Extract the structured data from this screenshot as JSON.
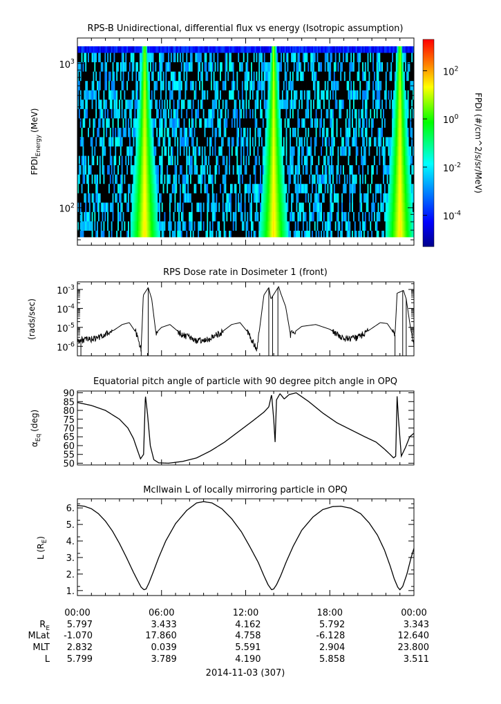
{
  "chart_data": [
    {
      "type": "heatmap",
      "title": "RPS-B  Unidirectional, differential flux vs energy (Isotropic assumption)",
      "ylabel_main": "FPDI",
      "ylabel_sub": "Energy",
      "ylabel_unit": "(MeV)",
      "yscale": "log",
      "ylim": [
        55,
        1500
      ],
      "yticks": [
        {
          "v": 100,
          "base": "10",
          "exp": "2"
        },
        {
          "v": 1000,
          "base": "10",
          "exp": "3"
        }
      ],
      "x_hours": [
        0,
        24
      ],
      "energy_bin_count": 21,
      "time_bin_count": 260,
      "peak_hours": [
        4.8,
        14.0,
        23.0
      ],
      "colorbar": {
        "label": "FPDI (#/cm^2/s/sr/MeV)",
        "scale": "log",
        "range_log10": [
          -5.3,
          3.3
        ],
        "ticks": [
          {
            "base": "10",
            "exp": "2",
            "v": 2
          },
          {
            "base": "10",
            "exp": "0",
            "v": 0
          },
          {
            "base": "10",
            "exp": "-2",
            "v": -2
          },
          {
            "base": "10",
            "exp": "-4",
            "v": -4
          }
        ],
        "colors": [
          "#00008b",
          "#0000ff",
          "#00ffff",
          "#00ff00",
          "#ffff00",
          "#ff8000",
          "#ff0000"
        ]
      }
    },
    {
      "type": "line",
      "title": "RPS  Dose rate in Dosimeter 1 (front)",
      "ylabel": "(rads/sec)",
      "yscale": "log",
      "ylim_log10": [
        -6.5,
        -2.6
      ],
      "yticks": [
        {
          "v": -6,
          "base": "10",
          "exp": "-6"
        },
        {
          "v": -5,
          "base": "10",
          "exp": "-5"
        },
        {
          "v": -4,
          "base": "10",
          "exp": "-4"
        },
        {
          "v": -3,
          "base": "10",
          "exp": "-3"
        }
      ],
      "x_hours": [
        0,
        1.3,
        2.6,
        3.2,
        3.7,
        4.2,
        4.55,
        4.7,
        5.05,
        5.3,
        5.6,
        6.0,
        6.6,
        7.4,
        8.4,
        9.3,
        10.2,
        11.0,
        11.6,
        12.2,
        12.8,
        13.3,
        13.65,
        13.8,
        14.35,
        14.5,
        14.85,
        15.2,
        16.0,
        17.0,
        18.0,
        19.0,
        20.0,
        21.0,
        21.6,
        22.1,
        22.65,
        22.8,
        23.25,
        23.45,
        23.75,
        24.0
      ],
      "values_log10": [
        -5.7,
        -5.6,
        -5.15,
        -4.85,
        -4.75,
        -5.3,
        -6.2,
        -3.3,
        -2.9,
        -3.5,
        -5.3,
        -5.0,
        -4.85,
        -5.35,
        -5.7,
        -5.65,
        -5.3,
        -4.85,
        -4.75,
        -5.3,
        -6.2,
        -3.3,
        -2.9,
        -3.5,
        -2.85,
        -3.2,
        -3.9,
        -5.4,
        -4.95,
        -4.85,
        -5.1,
        -5.6,
        -5.55,
        -5.05,
        -4.75,
        -4.8,
        -5.4,
        -3.2,
        -3.05,
        -3.5,
        -5.0,
        -5.9
      ],
      "dropout_hours": [
        4.55,
        5.05,
        13.65,
        13.92,
        14.3,
        22.65,
        23.2,
        23.45,
        0.25
      ]
    },
    {
      "type": "line",
      "title": "Equatorial pitch angle of particle with 90 degree pitch angle in OPQ",
      "ylabel_main": "α",
      "ylabel_sub": "Eq",
      "ylabel_unit": "(deg)",
      "ylim": [
        49,
        91
      ],
      "yticks": [
        50,
        55,
        60,
        65,
        70,
        75,
        80,
        85,
        90
      ],
      "x_hours": [
        0,
        1.0,
        2.0,
        3.0,
        3.6,
        4.0,
        4.3,
        4.5,
        4.72,
        4.85,
        5.0,
        5.2,
        5.45,
        5.8,
        6.5,
        7.5,
        8.5,
        9.5,
        10.5,
        11.5,
        12.5,
        13.3,
        13.65,
        13.85,
        14.0,
        14.1,
        14.2,
        14.45,
        14.75,
        15.1,
        15.6,
        16.5,
        17.5,
        18.5,
        19.5,
        20.5,
        21.3,
        21.9,
        22.3,
        22.55,
        22.7,
        22.8,
        22.9,
        23.1,
        23.4,
        23.7,
        24.0
      ],
      "values": [
        84.5,
        82.8,
        80.0,
        75.0,
        70.0,
        64.0,
        57.0,
        52.5,
        55.0,
        88.5,
        78.0,
        60.0,
        52.0,
        50.2,
        50.0,
        51.0,
        53.0,
        57.0,
        62.0,
        68.0,
        74.0,
        79.0,
        82.0,
        89.0,
        75.0,
        62.0,
        86.0,
        89.5,
        86.5,
        89.0,
        90.0,
        85.0,
        78.5,
        73.0,
        69.0,
        65.0,
        62.0,
        58.0,
        55.0,
        53.0,
        54.0,
        88.0,
        75.0,
        54.0,
        59.0,
        65.0,
        67.0
      ]
    },
    {
      "type": "line",
      "title": "McIlwain L of locally mirroring particle in OPQ",
      "ylabel_main": "L (R",
      "ylabel_sub": "E",
      "ylabel_end": ")",
      "ylim": [
        0.7,
        6.55
      ],
      "yticks": [
        1,
        2,
        3,
        4,
        5,
        6
      ],
      "x_hours": [
        0,
        0.5,
        1.0,
        1.5,
        2.0,
        2.5,
        3.0,
        3.5,
        4.0,
        4.3,
        4.55,
        4.75,
        4.9,
        5.1,
        5.4,
        5.8,
        6.3,
        7.0,
        7.8,
        8.5,
        9.0,
        9.6,
        10.3,
        11.0,
        11.7,
        12.3,
        12.9,
        13.3,
        13.6,
        13.85,
        14.0,
        14.2,
        14.5,
        14.9,
        15.4,
        16.0,
        16.8,
        17.5,
        18.2,
        18.8,
        19.5,
        20.2,
        20.8,
        21.4,
        21.9,
        22.3,
        22.6,
        22.85,
        23.0,
        23.2,
        23.5,
        23.8,
        24.0
      ],
      "values": [
        6.15,
        6.1,
        5.95,
        5.65,
        5.2,
        4.6,
        3.85,
        3.0,
        2.1,
        1.6,
        1.2,
        1.05,
        1.1,
        1.45,
        2.1,
        3.0,
        4.0,
        5.05,
        5.85,
        6.3,
        6.38,
        6.3,
        5.95,
        5.35,
        4.55,
        3.65,
        2.7,
        1.9,
        1.35,
        1.05,
        1.1,
        1.35,
        1.9,
        2.75,
        3.7,
        4.65,
        5.45,
        5.9,
        6.08,
        6.1,
        5.98,
        5.65,
        5.1,
        4.35,
        3.45,
        2.5,
        1.7,
        1.2,
        1.05,
        1.25,
        2.0,
        3.0,
        3.55
      ]
    }
  ],
  "xaxis": {
    "tick_labels": [
      "00:00",
      "06:00",
      "12:00",
      "18:00",
      "00:00"
    ],
    "row_labels": [
      {
        "main": "R",
        "sub": "E"
      },
      {
        "main": "MLat",
        "sub": ""
      },
      {
        "main": "MLT",
        "sub": ""
      },
      {
        "main": "L",
        "sub": ""
      }
    ],
    "rows": [
      [
        "5.797",
        "3.433",
        "4.162",
        "5.792",
        "3.343"
      ],
      [
        "-1.070",
        "17.860",
        "4.758",
        "-6.128",
        "12.640"
      ],
      [
        "2.832",
        "0.039",
        "5.591",
        "2.904",
        "23.800"
      ],
      [
        "5.799",
        "3.789",
        "4.190",
        "5.858",
        "3.511"
      ]
    ],
    "date_label": "2014-11-03 (307)"
  }
}
